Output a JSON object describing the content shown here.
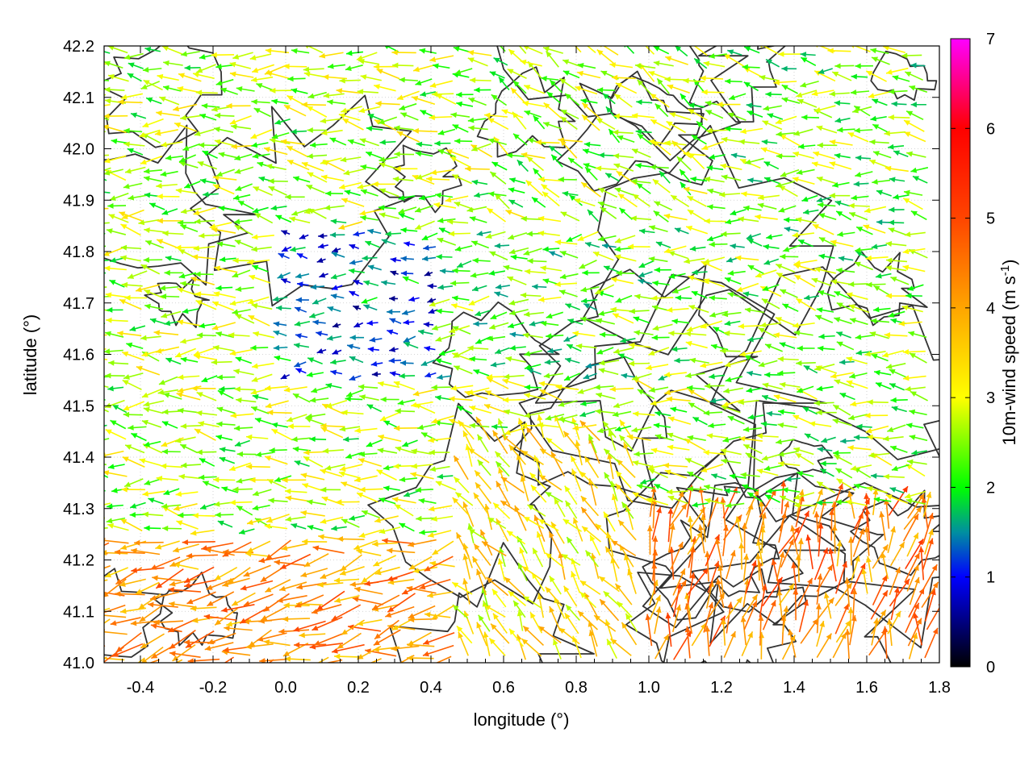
{
  "chart_data": {
    "type": "vector-field",
    "xlabel": "longitude (°)",
    "ylabel": "latitude (°)",
    "xlim": [
      -0.5,
      1.8
    ],
    "ylim": [
      41.0,
      42.2
    ],
    "x_ticks": [
      -0.4,
      -0.2,
      0.0,
      0.2,
      0.4,
      0.6,
      0.8,
      1.0,
      1.2,
      1.4,
      1.6,
      1.8
    ],
    "x_tick_labels": [
      "-0.4",
      "-0.2",
      "0.0",
      "0.2",
      "0.4",
      "0.6",
      "0.8",
      "1.0",
      "1.2",
      "1.4",
      "1.6",
      "1.8"
    ],
    "y_ticks": [
      41.0,
      41.1,
      41.2,
      41.3,
      41.4,
      41.5,
      41.6,
      41.7,
      41.8,
      41.9,
      42.0,
      42.1,
      42.2
    ],
    "y_tick_labels": [
      "41.0",
      "41.1",
      "41.2",
      "41.3",
      "41.4",
      "41.5",
      "41.6",
      "41.7",
      "41.8",
      "41.9",
      "42.0",
      "42.1",
      "42.2"
    ],
    "grid": true,
    "colorbar": {
      "label_main": "10m-wind speed (m s",
      "label_sup": "-1",
      "label_close": ")",
      "range": [
        0,
        7
      ],
      "ticks": [
        0,
        1,
        2,
        3,
        4,
        5,
        6,
        7
      ],
      "tick_labels": [
        "0",
        "1",
        "2",
        "3",
        "4",
        "5",
        "6",
        "7"
      ],
      "stops": [
        {
          "v": 0,
          "color": "#000000"
        },
        {
          "v": 1,
          "color": "#0000ff"
        },
        {
          "v": 1.5,
          "color": "#008fa0"
        },
        {
          "v": 2,
          "color": "#00ff00"
        },
        {
          "v": 3,
          "color": "#ffff00"
        },
        {
          "v": 4,
          "color": "#ffa500"
        },
        {
          "v": 5,
          "color": "#ff4500"
        },
        {
          "v": 6,
          "color": "#ff0000"
        },
        {
          "v": 7,
          "color": "#ff00ff"
        }
      ]
    },
    "regions": [
      {
        "lon": [
          -0.5,
          0.45
        ],
        "lat": [
          41.3,
          42.2
        ],
        "u": -0.95,
        "v": 0.05,
        "speed": 2.6
      },
      {
        "lon": [
          0.0,
          0.55
        ],
        "lat": [
          41.55,
          41.85
        ],
        "u": -0.9,
        "v": 0.0,
        "speed": 1.3
      },
      {
        "lon": [
          0.45,
          1.2
        ],
        "lat": [
          41.55,
          41.85
        ],
        "u": -0.9,
        "v": 0.0,
        "speed": 2.3
      },
      {
        "lon": [
          -0.5,
          0.5
        ],
        "lat": [
          41.0,
          41.25
        ],
        "u": -0.9,
        "v": -0.2,
        "speed": 4.2
      },
      {
        "lon": [
          0.5,
          1.0
        ],
        "lat": [
          41.0,
          41.45
        ],
        "u": -0.5,
        "v": 0.7,
        "speed": 3.3
      },
      {
        "lon": [
          1.0,
          1.8
        ],
        "lat": [
          41.0,
          41.3
        ],
        "u": 0.2,
        "v": 0.9,
        "speed": 4.4
      },
      {
        "lon": [
          1.2,
          1.8
        ],
        "lat": [
          41.3,
          42.2
        ],
        "u": -0.9,
        "v": 0.1,
        "speed": 2.4
      },
      {
        "lon": [
          0.6,
          1.2
        ],
        "lat": [
          41.85,
          42.2
        ],
        "u": -0.8,
        "v": 0.4,
        "speed": 2.6
      }
    ]
  }
}
